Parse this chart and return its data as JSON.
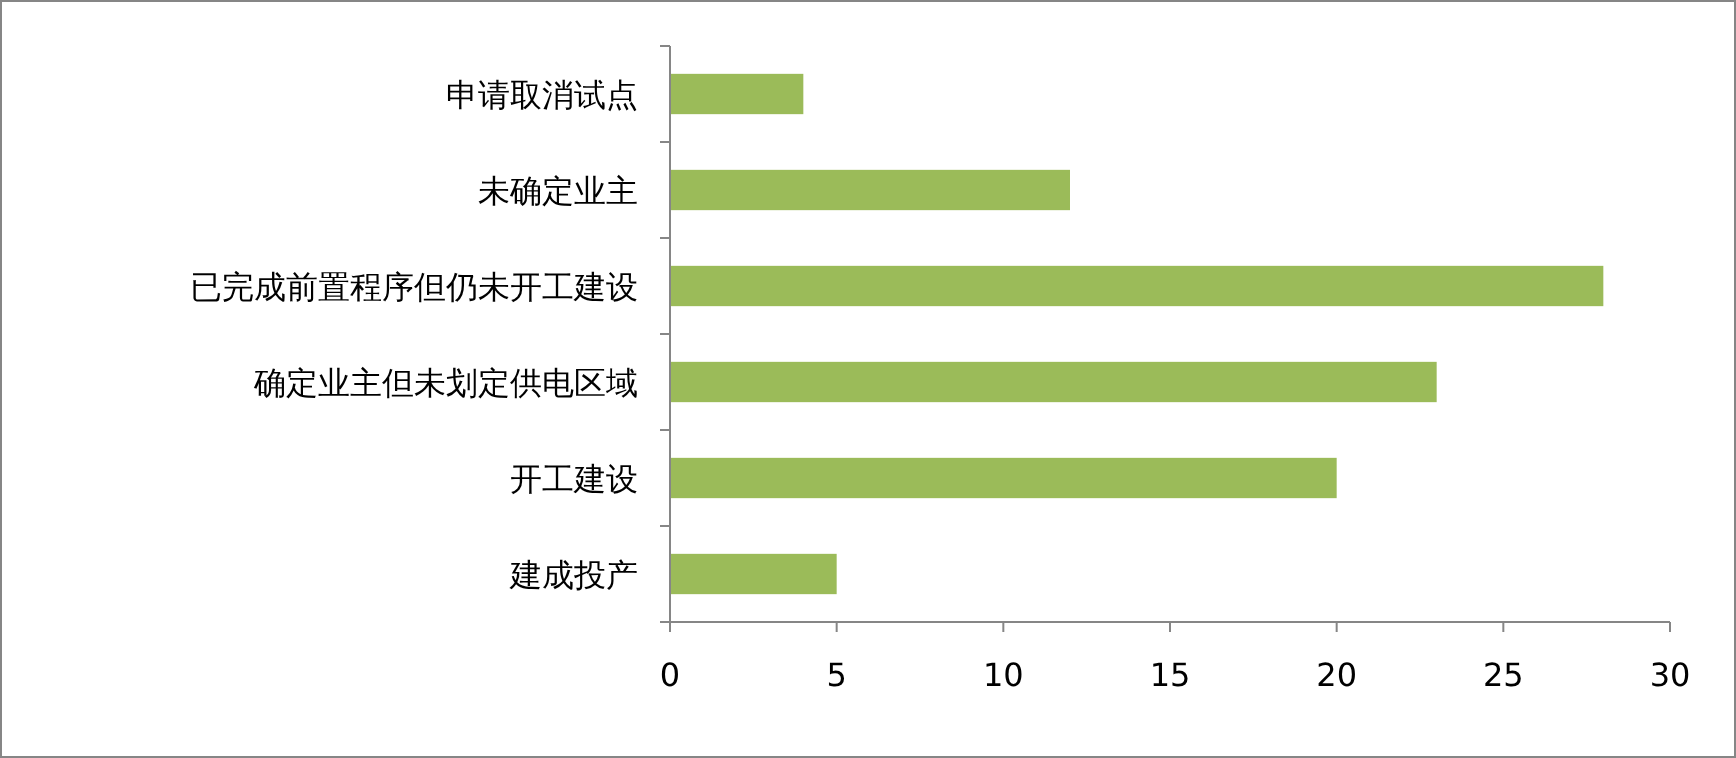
{
  "chart_data": {
    "type": "bar",
    "orientation": "horizontal",
    "categories": [
      "申请取消试点",
      "未确定业主",
      "已完成前置程序但仍未开工建设",
      "确定业主但未划定供电区域",
      "开工建设",
      "建成投产"
    ],
    "values": [
      4,
      12,
      28,
      23,
      20,
      5
    ],
    "color": "#9bbb59",
    "xlim": [
      0,
      30
    ],
    "xticks": [
      0,
      5,
      10,
      15,
      20,
      25,
      30
    ]
  }
}
